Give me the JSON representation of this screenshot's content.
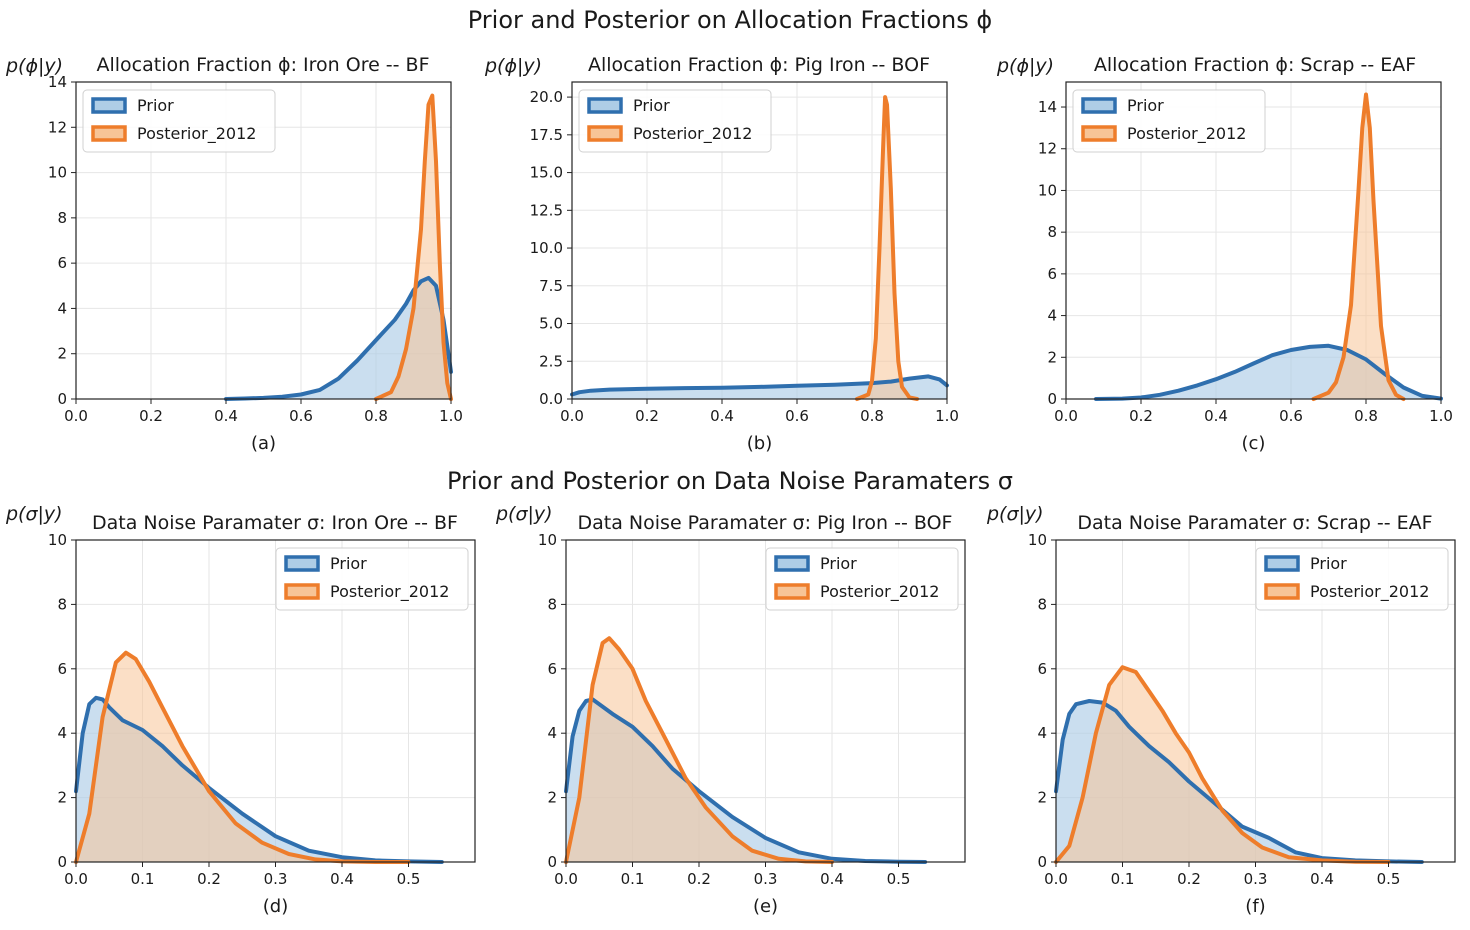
{
  "colors": {
    "prior": "#2f6fae",
    "prior_fill": "#aecde6",
    "posterior": "#ee7d2b",
    "posterior_fill": "#f7c497"
  },
  "titles": {
    "row1": "Prior and Posterior on Allocation Fractions ϕ",
    "row2": "Prior and Posterior on Data Noise Paramaters σ"
  },
  "chart_data": [
    {
      "type": "area",
      "title": "Allocation Fraction ϕ: Iron Ore -- BF",
      "ylabel": "p(ϕ|y)",
      "sublabel": "(a)",
      "xlim": [
        0,
        1
      ],
      "ylim": [
        0,
        14
      ],
      "xticks": [
        0,
        0.2,
        0.4,
        0.6,
        0.8,
        1.0
      ],
      "xticklabels": [
        "0.0",
        "0.2",
        "0.4",
        "0.6",
        "0.8",
        "1.0"
      ],
      "yticks": [
        0,
        2,
        4,
        6,
        8,
        10,
        12,
        14
      ],
      "yticklabels": [
        "0",
        "2",
        "4",
        "6",
        "8",
        "10",
        "12",
        "14"
      ],
      "legend": [
        "Prior",
        "Posterior_2012"
      ],
      "legend_loc": "upper left",
      "series": [
        {
          "name": "Prior",
          "x": [
            0.4,
            0.45,
            0.5,
            0.55,
            0.6,
            0.65,
            0.7,
            0.75,
            0.8,
            0.85,
            0.88,
            0.9,
            0.92,
            0.94,
            0.96,
            0.98,
            1.0
          ],
          "y": [
            0,
            0.02,
            0.05,
            0.1,
            0.2,
            0.4,
            0.9,
            1.7,
            2.6,
            3.5,
            4.2,
            4.8,
            5.2,
            5.35,
            5.0,
            3.5,
            1.2
          ]
        },
        {
          "name": "Posterior_2012",
          "x": [
            0.8,
            0.84,
            0.86,
            0.88,
            0.9,
            0.92,
            0.93,
            0.94,
            0.95,
            0.96,
            0.97,
            0.98,
            0.99,
            1.0
          ],
          "y": [
            0,
            0.3,
            1.0,
            2.2,
            4.0,
            7.5,
            10.5,
            13.0,
            13.4,
            10.5,
            6.0,
            2.5,
            0.7,
            0
          ]
        }
      ]
    },
    {
      "type": "area",
      "title": "Allocation Fraction ϕ: Pig Iron -- BOF",
      "ylabel": "p(ϕ|y)",
      "sublabel": "(b)",
      "xlim": [
        0,
        1
      ],
      "ylim": [
        0,
        21
      ],
      "xticks": [
        0,
        0.2,
        0.4,
        0.6,
        0.8,
        1.0
      ],
      "xticklabels": [
        "0.0",
        "0.2",
        "0.4",
        "0.6",
        "0.8",
        "1.0"
      ],
      "yticks": [
        0,
        2.5,
        5,
        7.5,
        10,
        12.5,
        15,
        17.5,
        20
      ],
      "yticklabels": [
        "0.0",
        "2.5",
        "5.0",
        "7.5",
        "10.0",
        "12.5",
        "15.0",
        "17.5",
        "20.0"
      ],
      "legend": [
        "Prior",
        "Posterior_2012"
      ],
      "legend_loc": "upper left",
      "series": [
        {
          "name": "Prior",
          "x": [
            0.0,
            0.02,
            0.05,
            0.1,
            0.2,
            0.3,
            0.4,
            0.5,
            0.6,
            0.7,
            0.8,
            0.85,
            0.9,
            0.95,
            0.98,
            1.0
          ],
          "y": [
            0.3,
            0.45,
            0.55,
            0.62,
            0.68,
            0.72,
            0.75,
            0.8,
            0.88,
            0.95,
            1.05,
            1.15,
            1.35,
            1.5,
            1.3,
            0.9
          ]
        },
        {
          "name": "Posterior_2012",
          "x": [
            0.76,
            0.79,
            0.8,
            0.81,
            0.82,
            0.83,
            0.835,
            0.84,
            0.85,
            0.86,
            0.87,
            0.88,
            0.9,
            0.92
          ],
          "y": [
            0,
            0.3,
            1.2,
            4.0,
            10.0,
            17.0,
            20.0,
            19.5,
            14.0,
            7.0,
            2.5,
            0.8,
            0.1,
            0
          ]
        }
      ]
    },
    {
      "type": "area",
      "title": "Allocation Fraction ϕ: Scrap -- EAF",
      "ylabel": "p(ϕ|y)",
      "sublabel": "(c)",
      "xlim": [
        0,
        1
      ],
      "ylim": [
        0,
        15.2
      ],
      "xticks": [
        0,
        0.2,
        0.4,
        0.6,
        0.8,
        1.0
      ],
      "xticklabels": [
        "0.0",
        "0.2",
        "0.4",
        "0.6",
        "0.8",
        "1.0"
      ],
      "yticks": [
        0,
        2,
        4,
        6,
        8,
        10,
        12,
        14
      ],
      "yticklabels": [
        "0",
        "2",
        "4",
        "6",
        "8",
        "10",
        "12",
        "14"
      ],
      "legend": [
        "Prior",
        "Posterior_2012"
      ],
      "legend_loc": "upper left",
      "series": [
        {
          "name": "Prior",
          "x": [
            0.08,
            0.15,
            0.2,
            0.25,
            0.3,
            0.35,
            0.4,
            0.45,
            0.5,
            0.55,
            0.6,
            0.65,
            0.7,
            0.75,
            0.8,
            0.85,
            0.9,
            0.95,
            1.0
          ],
          "y": [
            0,
            0.02,
            0.07,
            0.2,
            0.4,
            0.65,
            0.95,
            1.3,
            1.7,
            2.1,
            2.35,
            2.5,
            2.55,
            2.35,
            1.9,
            1.2,
            0.55,
            0.15,
            0.02
          ]
        },
        {
          "name": "Posterior_2012",
          "x": [
            0.66,
            0.7,
            0.72,
            0.74,
            0.76,
            0.78,
            0.79,
            0.8,
            0.81,
            0.82,
            0.84,
            0.86,
            0.88,
            0.9
          ],
          "y": [
            0,
            0.3,
            0.8,
            2.0,
            4.5,
            10.0,
            13.0,
            14.6,
            13.0,
            9.5,
            3.5,
            0.9,
            0.2,
            0
          ]
        }
      ]
    },
    {
      "type": "area",
      "title": "Data Noise Paramater σ: Iron Ore -- BF",
      "ylabel": "p(σ|y)",
      "sublabel": "(d)",
      "xlim": [
        0,
        0.6
      ],
      "ylim": [
        0,
        10
      ],
      "xticks": [
        0,
        0.1,
        0.2,
        0.3,
        0.4,
        0.5
      ],
      "xticklabels": [
        "0.0",
        "0.1",
        "0.2",
        "0.3",
        "0.4",
        "0.5"
      ],
      "yticks": [
        0,
        2,
        4,
        6,
        8,
        10
      ],
      "yticklabels": [
        "0",
        "2",
        "4",
        "6",
        "8",
        "10"
      ],
      "legend": [
        "Prior",
        "Posterior_2012"
      ],
      "legend_loc": "upper right",
      "series": [
        {
          "name": "Prior",
          "x": [
            0,
            0.01,
            0.02,
            0.03,
            0.04,
            0.05,
            0.07,
            0.1,
            0.13,
            0.16,
            0.2,
            0.25,
            0.3,
            0.35,
            0.4,
            0.45,
            0.5,
            0.55
          ],
          "y": [
            2.2,
            4.0,
            4.9,
            5.1,
            5.05,
            4.8,
            4.4,
            4.1,
            3.6,
            3.0,
            2.3,
            1.5,
            0.8,
            0.35,
            0.15,
            0.05,
            0.02,
            0
          ]
        },
        {
          "name": "Posterior_2012",
          "x": [
            0,
            0.02,
            0.04,
            0.06,
            0.075,
            0.09,
            0.11,
            0.13,
            0.16,
            0.2,
            0.24,
            0.28,
            0.32,
            0.36,
            0.4,
            0.45,
            0.5
          ],
          "y": [
            0,
            1.5,
            4.5,
            6.2,
            6.5,
            6.3,
            5.6,
            4.8,
            3.6,
            2.2,
            1.2,
            0.6,
            0.25,
            0.08,
            0.02,
            0,
            0
          ]
        }
      ]
    },
    {
      "type": "area",
      "title": "Data Noise Paramater σ: Pig Iron -- BOF",
      "ylabel": "p(σ|y)",
      "sublabel": "(e)",
      "xlim": [
        0,
        0.6
      ],
      "ylim": [
        0,
        10
      ],
      "xticks": [
        0,
        0.1,
        0.2,
        0.3,
        0.4,
        0.5
      ],
      "xticklabels": [
        "0.0",
        "0.1",
        "0.2",
        "0.3",
        "0.4",
        "0.5"
      ],
      "yticks": [
        0,
        2,
        4,
        6,
        8,
        10
      ],
      "yticklabels": [
        "0",
        "2",
        "4",
        "6",
        "8",
        "10"
      ],
      "legend": [
        "Prior",
        "Posterior_2012"
      ],
      "legend_loc": "upper right",
      "series": [
        {
          "name": "Prior",
          "x": [
            0,
            0.01,
            0.02,
            0.03,
            0.04,
            0.05,
            0.07,
            0.1,
            0.13,
            0.16,
            0.2,
            0.25,
            0.3,
            0.35,
            0.4,
            0.45,
            0.5,
            0.54
          ],
          "y": [
            2.2,
            3.9,
            4.7,
            5.0,
            5.05,
            4.9,
            4.6,
            4.2,
            3.6,
            2.9,
            2.2,
            1.4,
            0.75,
            0.3,
            0.1,
            0.03,
            0.01,
            0
          ]
        },
        {
          "name": "Posterior_2012",
          "x": [
            0,
            0.02,
            0.04,
            0.055,
            0.065,
            0.08,
            0.1,
            0.12,
            0.15,
            0.18,
            0.21,
            0.25,
            0.28,
            0.32,
            0.36,
            0.4
          ],
          "y": [
            0,
            2.0,
            5.5,
            6.8,
            6.95,
            6.6,
            6.0,
            5.0,
            3.8,
            2.6,
            1.7,
            0.8,
            0.35,
            0.1,
            0.02,
            0
          ]
        }
      ]
    },
    {
      "type": "area",
      "title": "Data Noise Paramater σ: Scrap -- EAF",
      "ylabel": "p(σ|y)",
      "sublabel": "(f)",
      "xlim": [
        0,
        0.6
      ],
      "ylim": [
        0,
        10
      ],
      "xticks": [
        0,
        0.1,
        0.2,
        0.3,
        0.4,
        0.5
      ],
      "xticklabels": [
        "0.0",
        "0.1",
        "0.2",
        "0.3",
        "0.4",
        "0.5"
      ],
      "yticks": [
        0,
        2,
        4,
        6,
        8,
        10
      ],
      "yticklabels": [
        "0",
        "2",
        "4",
        "6",
        "8",
        "10"
      ],
      "legend": [
        "Prior",
        "Posterior_2012"
      ],
      "legend_loc": "upper right",
      "series": [
        {
          "name": "Prior",
          "x": [
            0,
            0.01,
            0.02,
            0.03,
            0.05,
            0.07,
            0.09,
            0.11,
            0.14,
            0.17,
            0.2,
            0.24,
            0.28,
            0.32,
            0.36,
            0.4,
            0.45,
            0.5,
            0.55
          ],
          "y": [
            2.2,
            3.8,
            4.6,
            4.9,
            5.0,
            4.95,
            4.7,
            4.2,
            3.6,
            3.1,
            2.5,
            1.8,
            1.1,
            0.75,
            0.3,
            0.12,
            0.05,
            0.02,
            0
          ]
        },
        {
          "name": "Posterior_2012",
          "x": [
            0,
            0.02,
            0.04,
            0.06,
            0.08,
            0.1,
            0.12,
            0.14,
            0.16,
            0.18,
            0.2,
            0.22,
            0.25,
            0.28,
            0.31,
            0.35,
            0.4,
            0.45,
            0.5
          ],
          "y": [
            0,
            0.5,
            2.0,
            4.0,
            5.5,
            6.05,
            5.9,
            5.3,
            4.7,
            4.0,
            3.4,
            2.6,
            1.6,
            0.9,
            0.45,
            0.15,
            0.05,
            0.01,
            0
          ]
        }
      ]
    }
  ]
}
